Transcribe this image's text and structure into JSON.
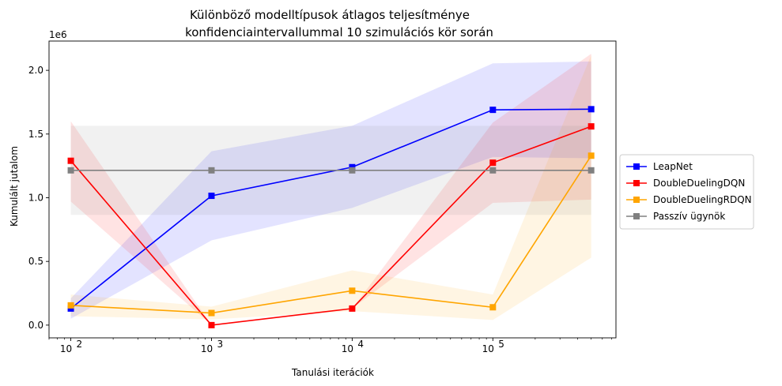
{
  "chart_data": {
    "type": "line",
    "title": [
      "Különböző modelltípusok átlagos teljesítménye",
      "konfidenciaintervallummal 10 szimulációs kör során"
    ],
    "xlabel": "Tanulási iterációk",
    "ylabel": "Kumulált jutalom",
    "y_offset_label": "1e6",
    "x_scale": "log",
    "x": [
      100,
      1000,
      10000,
      100000,
      500000
    ],
    "xlim": [
      70,
      750000
    ],
    "ylim": [
      -0.1,
      2.23
    ],
    "x_ticks": [
      {
        "value": 100,
        "base": "10",
        "exp": "2"
      },
      {
        "value": 1000,
        "base": "10",
        "exp": "3"
      },
      {
        "value": 10000,
        "base": "10",
        "exp": "4"
      },
      {
        "value": 100000,
        "base": "10",
        "exp": "5"
      }
    ],
    "y_ticks": [
      {
        "value": 0.0,
        "label": "0.0"
      },
      {
        "value": 0.5,
        "label": "0.5"
      },
      {
        "value": 1.0,
        "label": "1.0"
      },
      {
        "value": 1.5,
        "label": "1.5"
      },
      {
        "value": 2.0,
        "label": "2.0"
      }
    ],
    "grid": false,
    "legend_position": "outside-right",
    "series": [
      {
        "name": "LeapNet",
        "color": "#0000ff",
        "values": [
          0.13,
          1.015,
          1.24,
          1.69,
          1.695
        ],
        "lower": [
          0.05,
          0.665,
          0.92,
          1.32,
          1.31
        ],
        "upper": [
          0.21,
          1.365,
          1.565,
          2.055,
          2.07
        ]
      },
      {
        "name": "DoubleDuelingDQN",
        "color": "#ff0000",
        "values": [
          1.29,
          0.0,
          0.13,
          1.275,
          1.56
        ],
        "lower": [
          0.97,
          0.0,
          0.13,
          0.96,
          0.985
        ],
        "upper": [
          1.6,
          0.0,
          0.13,
          1.59,
          2.13
        ]
      },
      {
        "name": "DoubleDuelingRDQN",
        "color": "#ffa500",
        "values": [
          0.155,
          0.095,
          0.27,
          0.14,
          1.33
        ],
        "lower": [
          0.07,
          0.045,
          0.11,
          0.04,
          0.53
        ],
        "upper": [
          0.24,
          0.145,
          0.43,
          0.24,
          2.12
        ]
      },
      {
        "name": "Passzív ügynök",
        "color": "#808080",
        "values": [
          1.215,
          1.215,
          1.215,
          1.215,
          1.215
        ],
        "lower": [
          0.865,
          0.865,
          0.865,
          0.865,
          0.865
        ],
        "upper": [
          1.565,
          1.565,
          1.565,
          1.565,
          1.565
        ]
      }
    ]
  }
}
